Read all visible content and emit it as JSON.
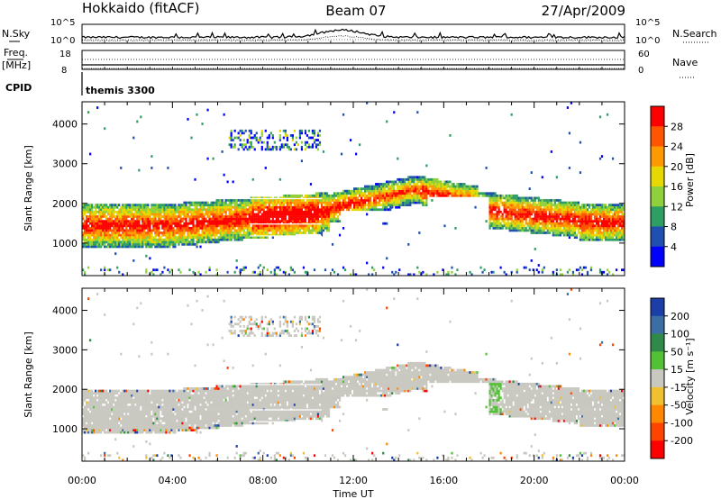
{
  "header": {
    "station": "Hokkaido (fitACF)",
    "beam": "Beam 07",
    "date": "27/Apr/2009"
  },
  "summary_panels": {
    "nsky_label": "N.Sky",
    "nsearch_label": "N.Search",
    "freq_label_1": "Freq.",
    "freq_label_2": "[MHz]",
    "nave_label": "Nave",
    "cpid_label": "CPID",
    "left_top_tick": "10^5",
    "left_bottom_tick": "10^0",
    "right_top_tick": "10^5",
    "right_bottom_tick": "10^0",
    "freq_ticks": [
      "18",
      "8"
    ],
    "nave_ticks": [
      "60",
      "0"
    ],
    "cpid_text": "themis 3300"
  },
  "chart_data": [
    {
      "type": "heatmap",
      "name": "power",
      "ylabel": "Slant Range [km]",
      "xlabel": "",
      "xlim": [
        "00:00",
        "24:00"
      ],
      "ylim": [
        180,
        4560
      ],
      "yticks": [
        1000,
        2000,
        3000,
        4000
      ],
      "colorbar": {
        "label": "Power [dB]",
        "ticks": [
          "28",
          "24",
          "20",
          "16",
          "12",
          "8",
          "4"
        ],
        "colors": [
          "#ff0000",
          "#ff5500",
          "#ff9900",
          "#e6d800",
          "#8fd13a",
          "#2e9e63",
          "#1f4fb0",
          "#0000ff"
        ]
      }
    },
    {
      "type": "heatmap",
      "name": "velocity",
      "ylabel": "Slant Range [km]",
      "xlabel": "Time UT",
      "xlim": [
        "00:00",
        "24:00"
      ],
      "ylim": [
        180,
        4560
      ],
      "yticks": [
        1000,
        2000,
        3000,
        4000
      ],
      "xticks": [
        "00:00",
        "04:00",
        "08:00",
        "12:00",
        "16:00",
        "20:00",
        "00:00"
      ],
      "colorbar": {
        "label": "Velocity [m s⁻¹]",
        "ticks": [
          "200",
          "100",
          "50",
          "15",
          "-15",
          "-50",
          "-100",
          "-200"
        ],
        "colors": [
          "#1c3ea8",
          "#3a6ea5",
          "#2f8a4a",
          "#52c234",
          "#c8c8c0",
          "#f0c030",
          "#ff8800",
          "#ff4400",
          "#ff0000"
        ]
      }
    }
  ]
}
